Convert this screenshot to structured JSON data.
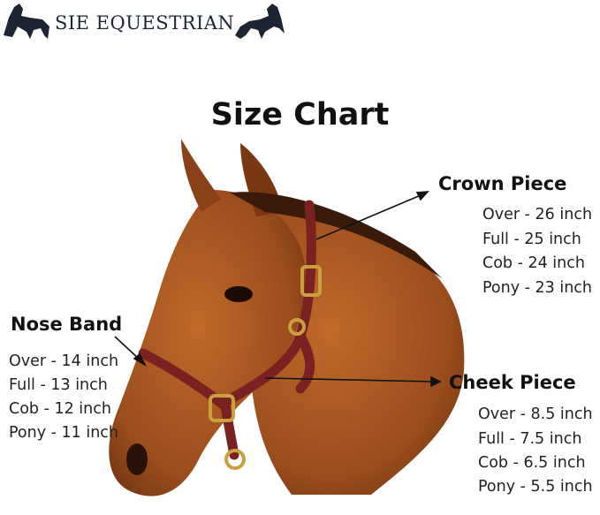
{
  "brand": {
    "name": "SIE EQUESTRIAN",
    "logo_icon": "horse-silhouette-icon"
  },
  "title": "Size Chart",
  "colors": {
    "strap": "#7a2222",
    "buckle": "#c8a040",
    "coat": "#a0521e",
    "logo": "#1d2433"
  },
  "crown_piece": {
    "heading": "Crown Piece",
    "sizes": [
      "Over - 26 inch",
      "Full - 25 inch",
      "Cob - 24 inch",
      "Pony - 23 inch"
    ]
  },
  "nose_band": {
    "heading": "Nose Band",
    "sizes": [
      "Over - 14 inch",
      "Full - 13 inch",
      "Cob - 12 inch",
      "Pony - 11 inch"
    ]
  },
  "cheek_piece": {
    "heading": "Cheek Piece",
    "sizes": [
      "Over - 8.5 inch",
      "Full - 7.5 inch",
      "Cob - 6.5 inch",
      "Pony - 5.5 inch"
    ]
  }
}
